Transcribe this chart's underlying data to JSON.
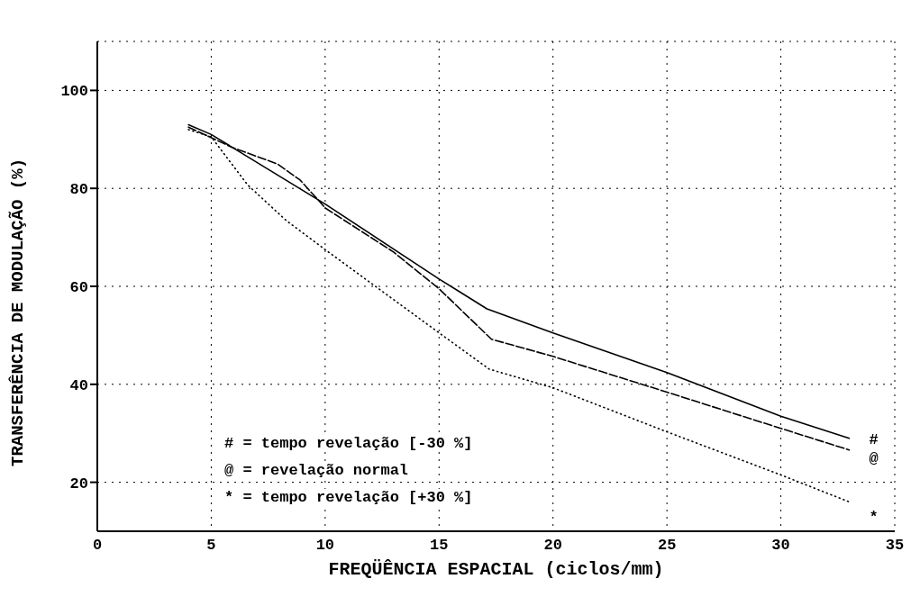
{
  "chart_data": {
    "type": "line",
    "xlabel": "FREQÜÊNCIA ESPACIAL (ciclos/mm)",
    "ylabel": "TRANSFERÊNCIA DE MODULAÇÃO   (%)",
    "series": [
      {
        "name": "#",
        "color": "#000000",
        "line_style": "solid",
        "x": [
          4,
          5,
          10,
          15,
          17.1,
          20,
          25,
          30,
          33
        ],
        "values": [
          93,
          91,
          76.8,
          61.5,
          55.4,
          50.5,
          42.4,
          33.5,
          29
        ]
      },
      {
        "name": "@",
        "color": "#000000",
        "line_style": "dashed",
        "x": [
          4,
          5.9,
          7.9,
          8.9,
          9.7,
          10,
          13,
          15,
          17.3,
          20,
          25,
          30,
          33
        ],
        "values": [
          92.5,
          88.4,
          85,
          81.7,
          77.6,
          76,
          67,
          59.5,
          49.2,
          45.7,
          38.4,
          31,
          26.6
        ]
      },
      {
        "name": "*",
        "color": "#000000",
        "line_style": "dotted",
        "x": [
          4,
          5,
          6.6,
          8.3,
          10,
          15,
          17.2,
          20,
          25,
          30,
          33
        ],
        "values": [
          92,
          90.5,
          80.7,
          73.4,
          67.5,
          50.5,
          43.1,
          39.3,
          30.3,
          21.5,
          16
        ]
      }
    ],
    "xlim": [
      0,
      35
    ],
    "xticks": [
      0,
      5,
      10,
      15,
      20,
      25,
      30,
      35
    ],
    "ylim": [
      10,
      110
    ],
    "yticks": [
      20,
      40,
      60,
      80,
      100
    ],
    "grid": true,
    "legend": false,
    "marker": "none",
    "annotations": [
      "# = tempo revelação [-30 %]",
      "@ = revelação normal",
      "* = tempo revelação [+30 %]"
    ]
  }
}
